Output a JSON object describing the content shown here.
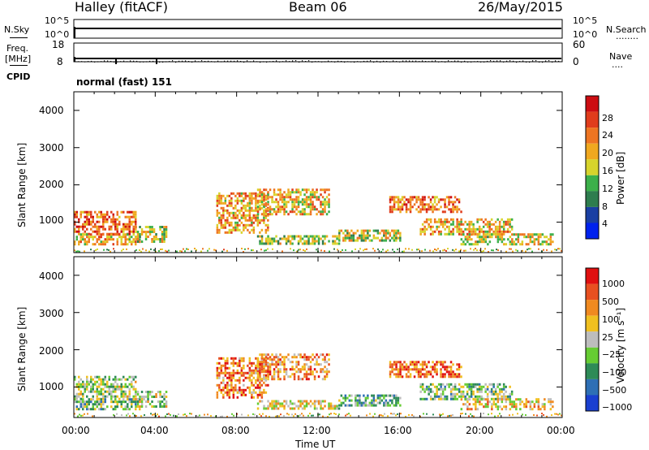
{
  "header": {
    "station": "Halley (fitACF)",
    "beam": "Beam 06",
    "date": "26/May/2015"
  },
  "params": {
    "nsky_label": "N.Sky",
    "nsearch_label": "N.Search",
    "nsearch_key": "........",
    "freq_label_1": "Freq.",
    "freq_label_2": "[MHz]",
    "freq_ticks": [
      "18",
      "8"
    ],
    "nave_ticks": [
      "60",
      "0"
    ],
    "nave_label": "Nave",
    "nave_key": "....",
    "noise_ticks": [
      "10^5",
      "10^0"
    ],
    "cpid_label": "CPID",
    "cpid_text": "normal (fast) 151"
  },
  "colors": {
    "power": [
      "#0022ee",
      "#1a3fa3",
      "#2e7d4e",
      "#3cb04a",
      "#d7d42c",
      "#f0a81f",
      "#ee7522",
      "#e03c1c",
      "#cc0d12"
    ],
    "velocity": [
      "#1a3fd0",
      "#2e6fb5",
      "#2e8b57",
      "#66cc33",
      "#bdbdbd",
      "#f0c020",
      "#f08a20",
      "#e85020",
      "#e01010"
    ]
  },
  "chart_data": [
    {
      "type": "heatmap",
      "panel": "power",
      "ylabel": "Slant Range [km]",
      "xlabel": "",
      "x_ticks": [
        "00:00",
        "04:00",
        "08:00",
        "12:00",
        "16:00",
        "20:00",
        "00:00"
      ],
      "y_ticks": [
        "1000",
        "2000",
        "3000",
        "4000"
      ],
      "xlim": [
        0,
        24
      ],
      "ylim": [
        180,
        4500
      ],
      "colorbar_label": "Power [dB]",
      "colorbar_ticks": [
        "28",
        "24",
        "20",
        "16",
        "12",
        "8",
        "4"
      ],
      "echo_bands": [
        {
          "t": [
            0.0,
            3.0
          ],
          "r": [
            700,
            1300
          ],
          "level": 0.75
        },
        {
          "t": [
            0.0,
            3.2
          ],
          "r": [
            400,
            700
          ],
          "level": 0.6
        },
        {
          "t": [
            3.0,
            4.5
          ],
          "r": [
            500,
            900
          ],
          "level": 0.5
        },
        {
          "t": [
            7.0,
            9.5
          ],
          "r": [
            700,
            1800
          ],
          "level": 0.65
        },
        {
          "t": [
            9.0,
            12.5
          ],
          "r": [
            1200,
            1900
          ],
          "level": 0.6
        },
        {
          "t": [
            9.0,
            13.0
          ],
          "r": [
            450,
            650
          ],
          "level": 0.45
        },
        {
          "t": [
            13.0,
            16.0
          ],
          "r": [
            500,
            800
          ],
          "level": 0.5
        },
        {
          "t": [
            15.5,
            19.0
          ],
          "r": [
            1300,
            1700
          ],
          "level": 0.75
        },
        {
          "t": [
            17.0,
            21.5
          ],
          "r": [
            700,
            1100
          ],
          "level": 0.6
        },
        {
          "t": [
            19.0,
            23.5
          ],
          "r": [
            400,
            700
          ],
          "level": 0.55
        }
      ]
    },
    {
      "type": "heatmap",
      "panel": "velocity",
      "ylabel": "Slant Range [km]",
      "xlabel": "Time UT",
      "x_ticks": [
        "00:00",
        "04:00",
        "08:00",
        "12:00",
        "16:00",
        "20:00",
        "00:00"
      ],
      "y_ticks": [
        "1000",
        "2000",
        "3000",
        "4000"
      ],
      "xlim": [
        0,
        24
      ],
      "ylim": [
        180,
        4500
      ],
      "colorbar_label": "Velocity [m s⁻¹]",
      "colorbar_ticks": [
        "1000",
        "500",
        "100",
        "25",
        "−25",
        "−100",
        "−500",
        "−1000"
      ],
      "echo_bands": [
        {
          "t": [
            0.0,
            3.0
          ],
          "r": [
            700,
            1300
          ],
          "level": 0.45
        },
        {
          "t": [
            0.0,
            3.2
          ],
          "r": [
            400,
            700
          ],
          "level": 0.4
        },
        {
          "t": [
            3.0,
            4.5
          ],
          "r": [
            500,
            900
          ],
          "level": 0.5
        },
        {
          "t": [
            7.0,
            9.5
          ],
          "r": [
            700,
            1800
          ],
          "level": 0.75
        },
        {
          "t": [
            9.0,
            12.5
          ],
          "r": [
            1200,
            1900
          ],
          "level": 0.72
        },
        {
          "t": [
            9.0,
            13.0
          ],
          "r": [
            450,
            650
          ],
          "level": 0.55
        },
        {
          "t": [
            13.0,
            16.0
          ],
          "r": [
            500,
            800
          ],
          "level": 0.35
        },
        {
          "t": [
            15.5,
            19.0
          ],
          "r": [
            1300,
            1700
          ],
          "level": 0.78
        },
        {
          "t": [
            17.0,
            21.5
          ],
          "r": [
            700,
            1100
          ],
          "level": 0.4
        },
        {
          "t": [
            19.0,
            23.5
          ],
          "r": [
            400,
            700
          ],
          "level": 0.6
        }
      ]
    }
  ]
}
